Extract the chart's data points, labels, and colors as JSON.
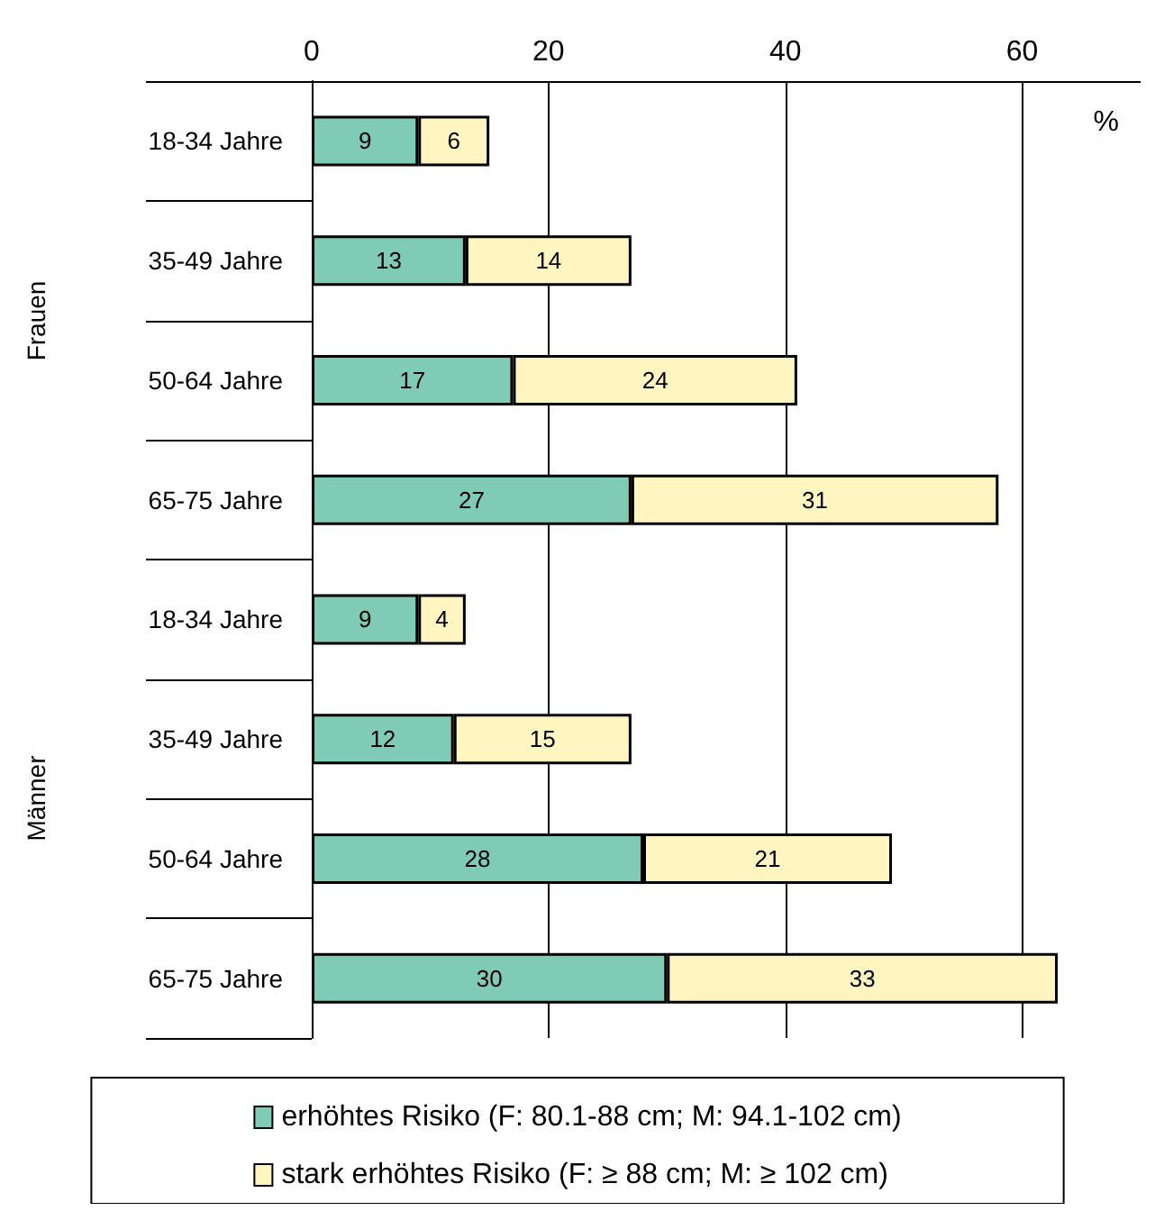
{
  "chart_data": {
    "type": "bar",
    "orientation": "horizontal",
    "stacked": true,
    "data_labels": true,
    "grid": "x",
    "legend": "bottom",
    "categories": [
      "18-34 Jahre",
      "35-49 Jahre",
      "50-64 Jahre",
      "65-75 Jahre",
      "18-34 Jahre",
      "35-49 Jahre",
      "50-64 Jahre",
      "65-75 Jahre"
    ],
    "series": [
      {
        "name": "erhöhtes Risiko (F: 80.1-88 cm; M: 94.1-102 cm)",
        "color": "#7fcbb5",
        "values": [
          9,
          13,
          17,
          27,
          9,
          12,
          28,
          30
        ]
      },
      {
        "name": "stark erhöhtes Risiko (F: ≥ 88 cm; M: ≥ 102 cm)",
        "color": "#fff5c0",
        "values": [
          6,
          14,
          24,
          31,
          4,
          15,
          21,
          33
        ]
      }
    ],
    "xlim": [
      0,
      70
    ],
    "xticks": [
      0,
      20,
      40,
      60
    ],
    "annotations": [
      "%",
      "Frauen",
      "Männer"
    ]
  }
}
